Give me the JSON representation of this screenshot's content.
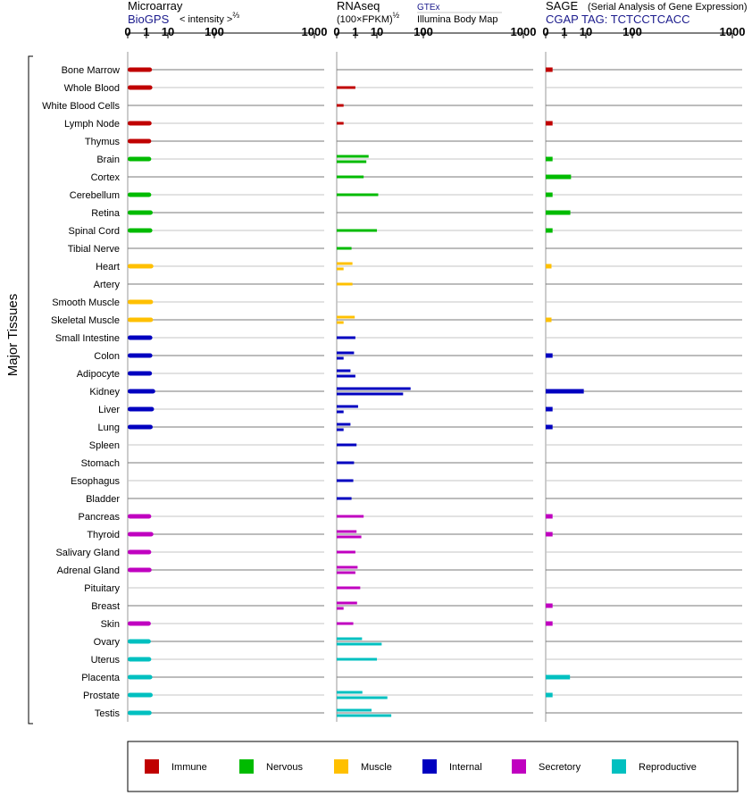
{
  "headers": {
    "microarray": {
      "title": "Microarray",
      "source": "BioGPS",
      "unit_prefix": "< intensity >",
      "unit_sup": "⅔"
    },
    "rnaseq": {
      "title": "RNAseq",
      "unit_prefix": "(100×FPKM)",
      "unit_sup": "½",
      "source": "GTEx",
      "source2": "Illumina Body Map"
    },
    "sage": {
      "title": "SAGE",
      "subtitle": "(Serial Analysis of Gene Expression)",
      "source": "CGAP TAG: TCTCCTCACC"
    }
  },
  "y_axis_label": "Major Tissues",
  "colors": {
    "Immune": "#c00000",
    "Nervous": "#00bb00",
    "Muscle": "#ffc000",
    "Internal": "#0000c0",
    "Secretory": "#c000c0",
    "Reproductive": "#00c0c0"
  },
  "legend": [
    {
      "name": "Immune",
      "color": "#c00000"
    },
    {
      "name": "Nervous",
      "color": "#00bb00"
    },
    {
      "name": "Muscle",
      "color": "#ffc000"
    },
    {
      "name": "Internal",
      "color": "#0000c0"
    },
    {
      "name": "Secretory",
      "color": "#c000c0"
    },
    {
      "name": "Reproductive",
      "color": "#00c0c0"
    }
  ],
  "chart_data": [
    {
      "type": "bar",
      "panel": "Microarray",
      "title": "Microarray",
      "scale": "log",
      "ticks": [
        "0",
        "1",
        "10",
        "100",
        "1000"
      ],
      "xlim": [
        0,
        1000
      ],
      "categories": [
        "Bone Marrow",
        "Whole Blood",
        "White Blood Cells",
        "Lymph Node",
        "Thymus",
        "Brain",
        "Cortex",
        "Cerebellum",
        "Retina",
        "Spinal Cord",
        "Tibial Nerve",
        "Heart",
        "Artery",
        "Smooth Muscle",
        "Skeletal Muscle",
        "Small Intestine",
        "Colon",
        "Adipocyte",
        "Kidney",
        "Liver",
        "Lung",
        "Spleen",
        "Stomach",
        "Esophagus",
        "Bladder",
        "Pancreas",
        "Thyroid",
        "Salivary Gland",
        "Adrenal Gland",
        "Pituitary",
        "Breast",
        "Skin",
        "Ovary",
        "Uterus",
        "Placenta",
        "Prostate",
        "Testis"
      ],
      "groups": [
        "Immune",
        "Immune",
        "Immune",
        "Immune",
        "Immune",
        "Nervous",
        "Nervous",
        "Nervous",
        "Nervous",
        "Nervous",
        "Nervous",
        "Muscle",
        "Muscle",
        "Muscle",
        "Muscle",
        "Internal",
        "Internal",
        "Internal",
        "Internal",
        "Internal",
        "Internal",
        "Internal",
        "Internal",
        "Internal",
        "Internal",
        "Secretory",
        "Secretory",
        "Secretory",
        "Secretory",
        "Secretory",
        "Secretory",
        "Secretory",
        "Reproductive",
        "Reproductive",
        "Reproductive",
        "Reproductive",
        "Reproductive"
      ],
      "values": [
        2.2,
        2.3,
        null,
        2.1,
        2.0,
        2.0,
        null,
        2.0,
        2.4,
        2.3,
        null,
        2.6,
        null,
        2.5,
        2.5,
        2.3,
        2.3,
        2.2,
        3.2,
        2.8,
        2.4,
        null,
        null,
        null,
        null,
        2.0,
        2.6,
        2.0,
        2.1,
        null,
        null,
        1.9,
        1.9,
        2.0,
        2.3,
        2.4,
        2.1
      ]
    },
    {
      "type": "bar",
      "panel": "RNAseq",
      "title": "RNAseq",
      "scale": "log",
      "ticks": [
        "0",
        "1",
        "10",
        "100",
        "1000"
      ],
      "xlim": [
        0,
        1000
      ],
      "categories": [
        "Bone Marrow",
        "Whole Blood",
        "White Blood Cells",
        "Lymph Node",
        "Thymus",
        "Brain",
        "Cortex",
        "Cerebellum",
        "Retina",
        "Spinal Cord",
        "Tibial Nerve",
        "Heart",
        "Artery",
        "Smooth Muscle",
        "Skeletal Muscle",
        "Small Intestine",
        "Colon",
        "Adipocyte",
        "Kidney",
        "Liver",
        "Lung",
        "Spleen",
        "Stomach",
        "Esophagus",
        "Bladder",
        "Pancreas",
        "Thyroid",
        "Salivary Gland",
        "Adrenal Gland",
        "Pituitary",
        "Breast",
        "Skin",
        "Ovary",
        "Uterus",
        "Placenta",
        "Prostate",
        "Testis"
      ],
      "groups": [
        "Immune",
        "Immune",
        "Immune",
        "Immune",
        "Immune",
        "Nervous",
        "Nervous",
        "Nervous",
        "Nervous",
        "Nervous",
        "Nervous",
        "Muscle",
        "Muscle",
        "Muscle",
        "Muscle",
        "Internal",
        "Internal",
        "Internal",
        "Internal",
        "Internal",
        "Internal",
        "Internal",
        "Internal",
        "Internal",
        "Internal",
        "Secretory",
        "Secretory",
        "Secretory",
        "Secretory",
        "Secretory",
        "Secretory",
        "Secretory",
        "Reproductive",
        "Reproductive",
        "Reproductive",
        "Reproductive",
        "Reproductive"
      ],
      "series": [
        {
          "name": "GTEx",
          "values": [
            null,
            1.0,
            0.05,
            null,
            null,
            5.0,
            3.0,
            11.0,
            null,
            10.0,
            0.5,
            0.6,
            0.6,
            null,
            0.9,
            1.0,
            0.8,
            0.4,
            62.0,
            1.5,
            0.4,
            1.2,
            0.8,
            0.7,
            0.5,
            3.0,
            1.2,
            1.0,
            1.4,
            2.0,
            1.3,
            0.7,
            2.5,
            10.0,
            null,
            2.6,
            6.5
          ]
        },
        {
          "name": "Illumina Body Map",
          "values": [
            null,
            null,
            null,
            0.05,
            null,
            4.0,
            null,
            null,
            null,
            null,
            null,
            0.05,
            null,
            null,
            0.05,
            null,
            0.05,
            1.0,
            45.0,
            0.05,
            0.05,
            null,
            null,
            null,
            null,
            null,
            2.3,
            null,
            1.0,
            null,
            0.05,
            null,
            14.0,
            null,
            null,
            20.0,
            25.0
          ]
        }
      ]
    },
    {
      "type": "bar",
      "panel": "SAGE",
      "title": "SAGE",
      "scale": "log",
      "ticks": [
        "0",
        "1",
        "10",
        "100",
        "1000"
      ],
      "xlim": [
        0,
        1000
      ],
      "categories": [
        "Bone Marrow",
        "Whole Blood",
        "White Blood Cells",
        "Lymph Node",
        "Thymus",
        "Brain",
        "Cortex",
        "Cerebellum",
        "Retina",
        "Spinal Cord",
        "Tibial Nerve",
        "Heart",
        "Artery",
        "Smooth Muscle",
        "Skeletal Muscle",
        "Small Intestine",
        "Colon",
        "Adipocyte",
        "Kidney",
        "Liver",
        "Lung",
        "Spleen",
        "Stomach",
        "Esophagus",
        "Bladder",
        "Pancreas",
        "Thyroid",
        "Salivary Gland",
        "Adrenal Gland",
        "Pituitary",
        "Breast",
        "Skin",
        "Ovary",
        "Uterus",
        "Placenta",
        "Prostate",
        "Testis"
      ],
      "groups": [
        "Immune",
        "Immune",
        "Immune",
        "Immune",
        "Immune",
        "Nervous",
        "Nervous",
        "Nervous",
        "Nervous",
        "Nervous",
        "Nervous",
        "Muscle",
        "Muscle",
        "Muscle",
        "Muscle",
        "Internal",
        "Internal",
        "Internal",
        "Internal",
        "Internal",
        "Internal",
        "Internal",
        "Internal",
        "Internal",
        "Internal",
        "Secretory",
        "Secretory",
        "Secretory",
        "Secretory",
        "Secretory",
        "Secretory",
        "Secretory",
        "Reproductive",
        "Reproductive",
        "Reproductive",
        "Reproductive",
        "Reproductive"
      ],
      "values": [
        0.05,
        null,
        null,
        0.05,
        null,
        0.05,
        2.5,
        0.05,
        2.3,
        0.05,
        null,
        0.03,
        null,
        null,
        0.03,
        null,
        0.05,
        null,
        8.5,
        0.05,
        0.05,
        null,
        null,
        null,
        null,
        0.05,
        0.05,
        null,
        null,
        null,
        0.05,
        0.05,
        null,
        null,
        2.2,
        0.05,
        null
      ]
    }
  ]
}
